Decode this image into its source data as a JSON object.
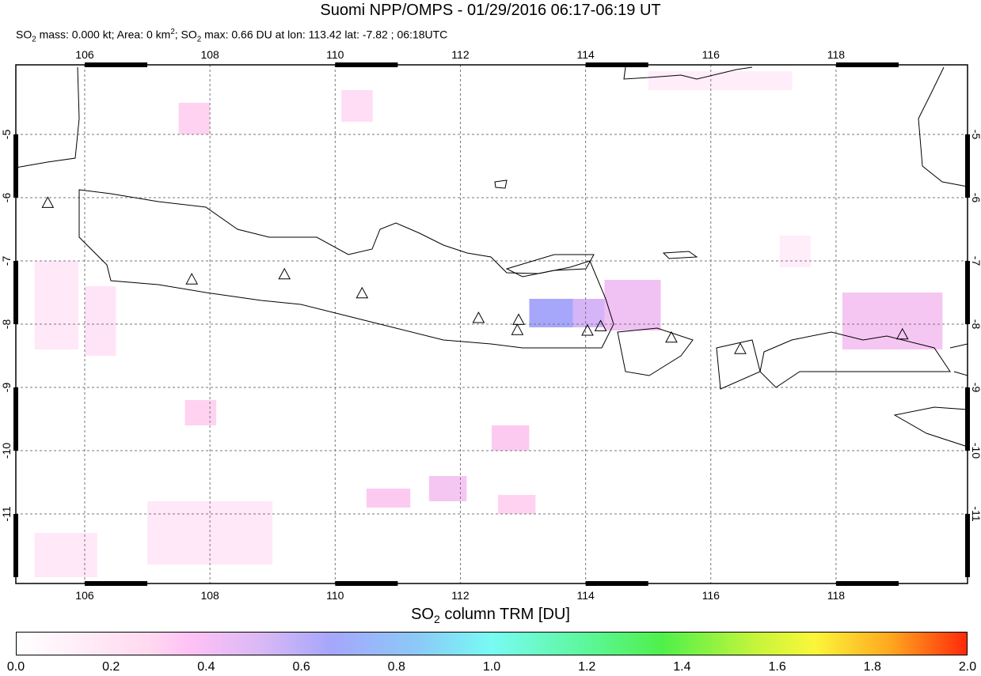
{
  "header": {
    "title": "Suomi NPP/OMPS - 01/29/2016 06:17-06:19 UT",
    "subtitle_parts": {
      "a": "SO",
      "a_sub": "2",
      "b": " mass: 0.000 kt; Area: 0 km",
      "b_sup": "2",
      "c": "; SO",
      "c_sub": "2",
      "d": " max: 0.66 DU at lon: 113.42 lat: -7.82 ; 06:18UTC"
    }
  },
  "map": {
    "lon_range": [
      104.9,
      120.1
    ],
    "lat_range": [
      -12.1,
      -3.9
    ],
    "lon_ticks": [
      "106",
      "108",
      "110",
      "112",
      "114",
      "116",
      "118"
    ],
    "lat_ticks": [
      "-5",
      "-6",
      "-7",
      "-8",
      "-9",
      "-10",
      "-11"
    ],
    "grid": "dashed",
    "volcanoes": [
      [
        105.41,
        -6.08
      ],
      [
        107.71,
        -7.29
      ],
      [
        109.19,
        -7.21
      ],
      [
        110.43,
        -7.51
      ],
      [
        112.29,
        -7.9
      ],
      [
        112.93,
        -7.93
      ],
      [
        112.91,
        -8.09
      ],
      [
        114.03,
        -8.1
      ],
      [
        114.24,
        -8.03
      ],
      [
        115.37,
        -8.21
      ],
      [
        116.47,
        -8.39
      ],
      [
        119.06,
        -8.16
      ]
    ],
    "so2_cells": [
      {
        "lon": [
          113.1,
          113.8
        ],
        "lat": [
          -7.6,
          -8.05
        ],
        "du": 0.66
      },
      {
        "lon": [
          113.8,
          114.5
        ],
        "lat": [
          -7.6,
          -8.05
        ],
        "du": 0.5
      },
      {
        "lon": [
          114.3,
          115.2
        ],
        "lat": [
          -7.3,
          -8.1
        ],
        "du": 0.35
      },
      {
        "lon": [
          118.1,
          119.7
        ],
        "lat": [
          -7.5,
          -8.4
        ],
        "du": 0.3
      },
      {
        "lon": [
          110.1,
          110.6
        ],
        "lat": [
          -4.3,
          -4.8
        ],
        "du": 0.15
      },
      {
        "lon": [
          107.5,
          108.0
        ],
        "lat": [
          -4.5,
          -5.0
        ],
        "du": 0.2
      },
      {
        "lon": [
          112.5,
          113.1
        ],
        "lat": [
          -9.6,
          -10.0
        ],
        "du": 0.25
      },
      {
        "lon": [
          110.5,
          111.2
        ],
        "lat": [
          -10.6,
          -10.9
        ],
        "du": 0.25
      },
      {
        "lon": [
          111.5,
          112.1
        ],
        "lat": [
          -10.4,
          -10.8
        ],
        "du": 0.3
      },
      {
        "lon": [
          112.6,
          113.2
        ],
        "lat": [
          -10.7,
          -11.0
        ],
        "du": 0.2
      },
      {
        "lon": [
          107.6,
          108.1
        ],
        "lat": [
          -9.2,
          -9.6
        ],
        "du": 0.2
      },
      {
        "lon": [
          105.2,
          105.9
        ],
        "lat": [
          -7.0,
          -8.4
        ],
        "du": 0.1
      },
      {
        "lon": [
          106.0,
          106.5
        ],
        "lat": [
          -7.4,
          -8.5
        ],
        "du": 0.12
      },
      {
        "lon": [
          115.0,
          117.3
        ],
        "lat": [
          -4.0,
          -4.3
        ],
        "du": 0.08
      },
      {
        "lon": [
          117.1,
          117.6
        ],
        "lat": [
          -6.6,
          -7.1
        ],
        "du": 0.08
      },
      {
        "lon": [
          105.2,
          106.2
        ],
        "lat": [
          -11.3,
          -12.0
        ],
        "du": 0.1
      },
      {
        "lon": [
          107.0,
          109.0
        ],
        "lat": [
          -10.8,
          -11.8
        ],
        "du": 0.1
      }
    ]
  },
  "colorbar": {
    "title": "SO",
    "title_sub": "2",
    "title_rest": " column TRM [DU]",
    "ticks": [
      "0.0",
      "0.2",
      "0.4",
      "0.6",
      "0.8",
      "1.0",
      "1.2",
      "1.4",
      "1.6",
      "1.8",
      "2.0"
    ],
    "range": [
      0,
      2
    ]
  }
}
